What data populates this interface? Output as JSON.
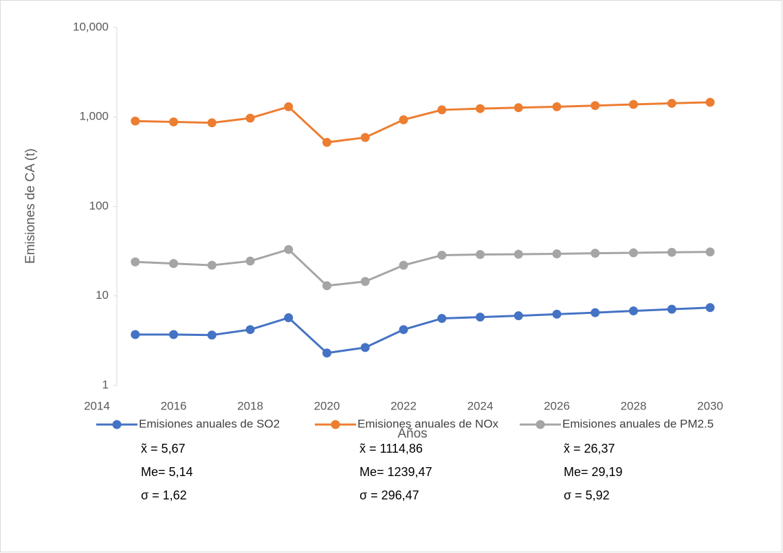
{
  "chart_data": {
    "type": "line",
    "x_label": "Años",
    "y_label": "Emisiones de CA  (t)",
    "x": [
      2015,
      2016,
      2017,
      2018,
      2019,
      2020,
      2021,
      2022,
      2023,
      2024,
      2025,
      2026,
      2027,
      2028,
      2029,
      2030
    ],
    "series": [
      {
        "name": "Emisiones anuales de SO2",
        "color": "#4472c4",
        "values": [
          3.7,
          3.7,
          3.65,
          4.2,
          5.7,
          2.3,
          2.65,
          4.2,
          5.6,
          5.8,
          6.0,
          6.25,
          6.5,
          6.8,
          7.1,
          7.4
        ]
      },
      {
        "name": "Emisiones anuales de NOx",
        "color": "#ed7d31",
        "values": [
          900,
          880,
          860,
          970,
          1300,
          520,
          590,
          930,
          1200,
          1240,
          1270,
          1300,
          1340,
          1380,
          1420,
          1460
        ]
      },
      {
        "name": "Emisiones anuales de PM2.5",
        "color": "#a5a5a5",
        "values": [
          24,
          23,
          22,
          24.5,
          33,
          13,
          14.5,
          22,
          28.5,
          29,
          29.2,
          29.5,
          30,
          30.3,
          30.7,
          31
        ]
      }
    ],
    "xlim": [
      2014,
      2030
    ],
    "xticks": [
      2014,
      2016,
      2018,
      2020,
      2022,
      2024,
      2026,
      2028,
      2030
    ],
    "ylim": [
      1,
      10000
    ],
    "yticks": [
      1,
      10,
      100,
      {
        "value": 1000,
        "label": "1,000"
      },
      {
        "value": 10000,
        "label": "10,000"
      }
    ],
    "log_y": true,
    "legend": "bottom",
    "stats": [
      [
        "x̃ = 5,67",
        "Me= 5,14",
        "σ = 1,62"
      ],
      [
        "x̃ = 1114,86",
        "Me= 1239,47",
        "σ = 296,47"
      ],
      [
        "x̃ = 26,37",
        "Me= 29,19",
        "σ = 5,92"
      ]
    ]
  }
}
